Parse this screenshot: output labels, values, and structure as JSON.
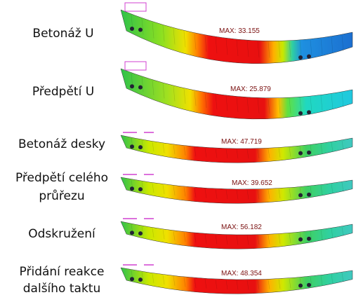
{
  "rows": [
    {
      "label": [
        "Betonáž U"
      ],
      "max": "MAX: 33.155"
    },
    {
      "label": [
        "Předpětí U"
      ],
      "max": "MAX: 25.879"
    },
    {
      "label": [
        "Betonáž desky"
      ],
      "max": "MAX: 47.719"
    },
    {
      "label": [
        "Předpětí celého",
        "průřezu"
      ],
      "max": "MAX: 39.652"
    },
    {
      "label": [
        "Odskružení"
      ],
      "max": "MAX: 56.182"
    },
    {
      "label": [
        "Přidání reakce",
        "dalšího taktu"
      ],
      "max": "MAX: 48.354"
    }
  ]
}
